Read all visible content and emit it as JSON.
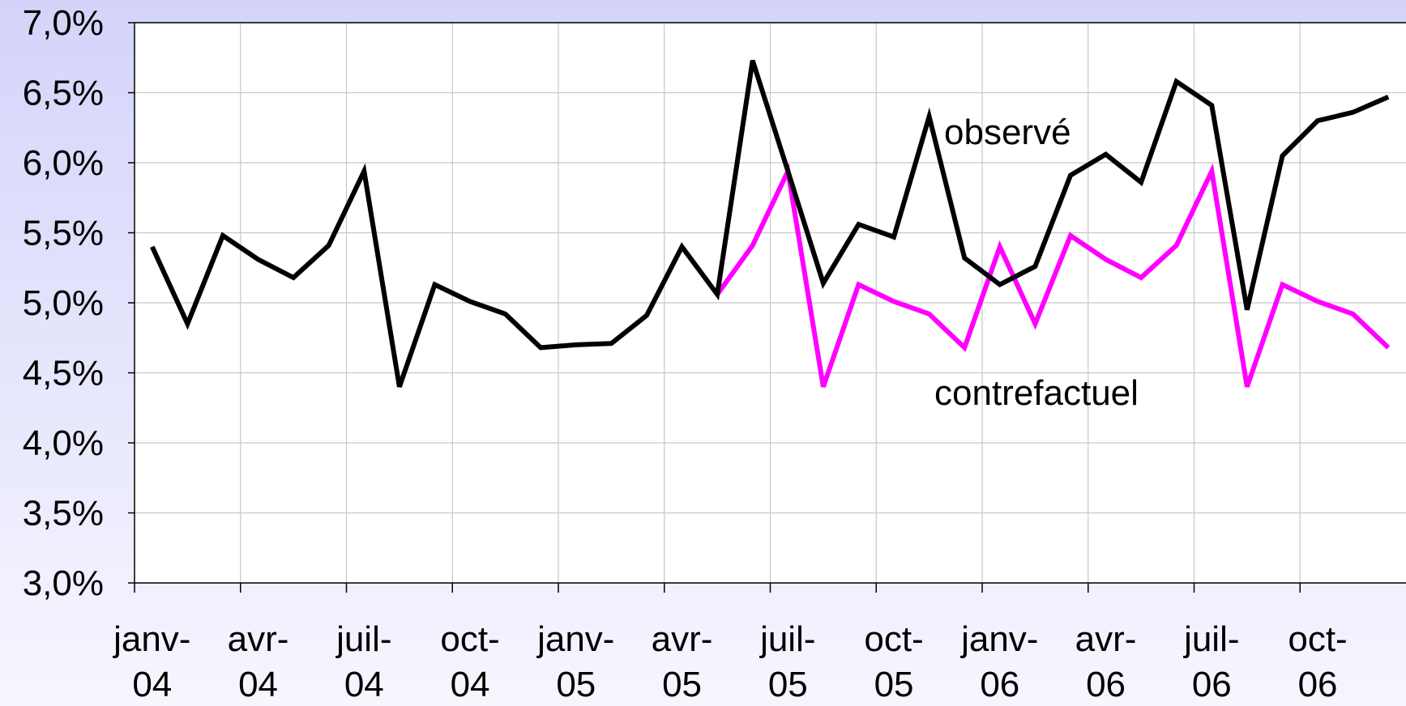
{
  "chart_data": {
    "type": "line",
    "categories": [
      "janv-04",
      null,
      null,
      "avr-04",
      null,
      null,
      "juil-04",
      null,
      null,
      "oct-04",
      null,
      null,
      "janv-05",
      null,
      null,
      "avr-05",
      null,
      null,
      "juil-05",
      null,
      null,
      "oct-05",
      null,
      null,
      "janv-06",
      null,
      null,
      "avr-06",
      null,
      null,
      "juil-06",
      null,
      null,
      "oct-06",
      null,
      null
    ],
    "series": [
      {
        "name": "observé",
        "color": "#000000",
        "values": [
          5.4,
          4.85,
          5.48,
          5.31,
          5.18,
          5.41,
          5.94,
          4.4,
          5.13,
          5.01,
          4.92,
          4.68,
          4.7,
          4.71,
          4.91,
          5.4,
          5.06,
          6.73,
          5.94,
          5.14,
          5.56,
          5.47,
          6.33,
          5.32,
          5.13,
          5.26,
          5.91,
          6.06,
          5.86,
          6.58,
          6.41,
          4.95,
          6.05,
          6.3,
          6.36,
          6.47
        ]
      },
      {
        "name": "contrefactuel",
        "color": "#ff00ff",
        "values": [
          null,
          null,
          null,
          null,
          null,
          null,
          null,
          null,
          null,
          null,
          null,
          null,
          null,
          null,
          null,
          null,
          5.06,
          5.41,
          5.94,
          4.4,
          5.13,
          5.01,
          4.92,
          4.68,
          5.4,
          4.85,
          5.48,
          5.31,
          5.18,
          5.41,
          5.94,
          4.4,
          5.13,
          5.01,
          4.92,
          4.68
        ]
      }
    ],
    "ylim": [
      3.0,
      7.0
    ],
    "yticks": [
      {
        "value": 3.0,
        "label": "3,0%"
      },
      {
        "value": 3.5,
        "label": "3,5%"
      },
      {
        "value": 4.0,
        "label": "4,0%"
      },
      {
        "value": 4.5,
        "label": "4,5%"
      },
      {
        "value": 5.0,
        "label": "5,0%"
      },
      {
        "value": 5.5,
        "label": "5,5%"
      },
      {
        "value": 6.0,
        "label": "6,0%"
      },
      {
        "value": 6.5,
        "label": "6,5%"
      },
      {
        "value": 7.0,
        "label": "7,0%"
      }
    ],
    "grid": true
  }
}
